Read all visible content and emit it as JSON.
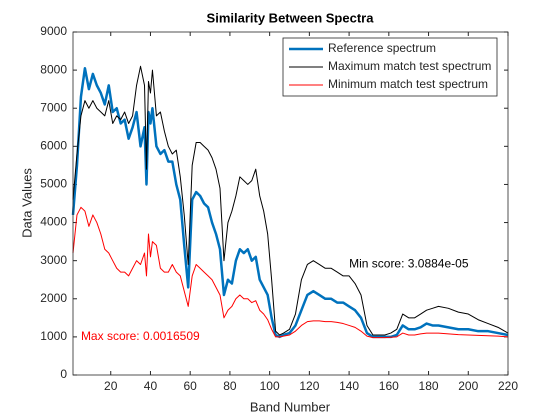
{
  "chart_data": {
    "type": "line",
    "title": "Similarity Between Spectra",
    "xlabel": "Band Number",
    "ylabel": "Data Values",
    "x": [
      1,
      3,
      5,
      7,
      9,
      11,
      13,
      15,
      17,
      19,
      21,
      23,
      25,
      27,
      29,
      31,
      33,
      35,
      37,
      38,
      39,
      40,
      41,
      43,
      45,
      47,
      49,
      51,
      53,
      55,
      57,
      59,
      61,
      63,
      65,
      67,
      69,
      71,
      73,
      75,
      77,
      79,
      81,
      83,
      85,
      87,
      89,
      91,
      93,
      95,
      97,
      99,
      101,
      103,
      105,
      107,
      110,
      113,
      116,
      119,
      122,
      125,
      128,
      131,
      134,
      137,
      140,
      143,
      146,
      149,
      152,
      155,
      158,
      161,
      164,
      167,
      170,
      173,
      176,
      179,
      182,
      185,
      190,
      195,
      200,
      205,
      210,
      215,
      220
    ],
    "series": [
      {
        "name": "Reference spectrum",
        "color": "#0072bd",
        "width": 2.5,
        "values": [
          4200,
          5500,
          7300,
          8050,
          7500,
          7900,
          7600,
          7400,
          7100,
          7600,
          6900,
          7000,
          6600,
          6700,
          6200,
          6500,
          6900,
          6000,
          6500,
          5000,
          6900,
          6600,
          7000,
          6000,
          5800,
          5900,
          5600,
          5600,
          5000,
          4600,
          3400,
          2300,
          4600,
          4800,
          4700,
          4500,
          4400,
          4000,
          3700,
          3300,
          2100,
          2500,
          2400,
          3000,
          3300,
          3200,
          3300,
          3000,
          3100,
          2500,
          2300,
          2100,
          1500,
          1050,
          1000,
          1050,
          1100,
          1300,
          1700,
          2100,
          2200,
          2100,
          2000,
          2000,
          1900,
          1900,
          1800,
          1700,
          1500,
          1100,
          1000,
          1000,
          1000,
          1000,
          1050,
          1300,
          1200,
          1200,
          1250,
          1350,
          1300,
          1300,
          1250,
          1200,
          1200,
          1150,
          1150,
          1100,
          1050
        ]
      },
      {
        "name": "Maximum match test spectrum",
        "color": "#000000",
        "width": 1,
        "values": [
          4600,
          5800,
          6800,
          7200,
          7000,
          7200,
          7000,
          6900,
          6800,
          7200,
          6600,
          6800,
          6700,
          6900,
          6600,
          6800,
          7600,
          8100,
          7600,
          5400,
          7700,
          7400,
          8000,
          6800,
          6900,
          6400,
          6000,
          5800,
          5900,
          5200,
          4200,
          2900,
          5500,
          6100,
          6100,
          6000,
          5900,
          5700,
          5400,
          4900,
          3000,
          4000,
          4300,
          4700,
          5200,
          5100,
          5000,
          5100,
          5400,
          4700,
          4300,
          3700,
          2500,
          1150,
          1050,
          1100,
          1200,
          1600,
          2500,
          2900,
          3000,
          2900,
          2800,
          2800,
          2700,
          2600,
          2600,
          2400,
          2100,
          1300,
          1050,
          1050,
          1050,
          1100,
          1200,
          1600,
          1500,
          1500,
          1600,
          1700,
          1750,
          1800,
          1750,
          1650,
          1600,
          1450,
          1350,
          1250,
          1100
        ]
      },
      {
        "name": "Minimum match test spectrum",
        "color": "#ff0000",
        "width": 1,
        "values": [
          3200,
          4200,
          4400,
          4300,
          3900,
          4200,
          4000,
          3700,
          3300,
          3200,
          3000,
          2800,
          2700,
          2700,
          2600,
          2800,
          3000,
          2900,
          3200,
          2600,
          3700,
          3100,
          3500,
          3400,
          2800,
          2700,
          2700,
          2900,
          2700,
          2600,
          2200,
          1800,
          2600,
          2900,
          2800,
          2700,
          2600,
          2500,
          2300,
          2100,
          1500,
          1700,
          1800,
          2000,
          2100,
          2000,
          2000,
          1900,
          1950,
          1700,
          1600,
          1450,
          1200,
          1000,
          1000,
          1020,
          1050,
          1150,
          1300,
          1400,
          1420,
          1420,
          1400,
          1400,
          1380,
          1350,
          1300,
          1250,
          1150,
          1020,
          980,
          980,
          980,
          990,
          1000,
          1100,
          1050,
          1050,
          1080,
          1100,
          1100,
          1100,
          1080,
          1060,
          1050,
          1040,
          1030,
          1020,
          1000
        ]
      }
    ],
    "annotations": [
      {
        "text": "Max score: 0.0016509",
        "x": 5,
        "y": 1000,
        "color": "#ff0000"
      },
      {
        "text": "Min score: 3.0884e-05",
        "x": 140,
        "y": 2900,
        "color": "#000000"
      }
    ],
    "xlim": [
      1,
      220
    ],
    "xticks": [
      20,
      40,
      60,
      80,
      100,
      120,
      140,
      160,
      180,
      200,
      220
    ],
    "ylim": [
      0,
      9000
    ],
    "yticks": [
      0,
      1000,
      2000,
      3000,
      4000,
      5000,
      6000,
      7000,
      8000,
      9000
    ],
    "legend": "top-right"
  }
}
